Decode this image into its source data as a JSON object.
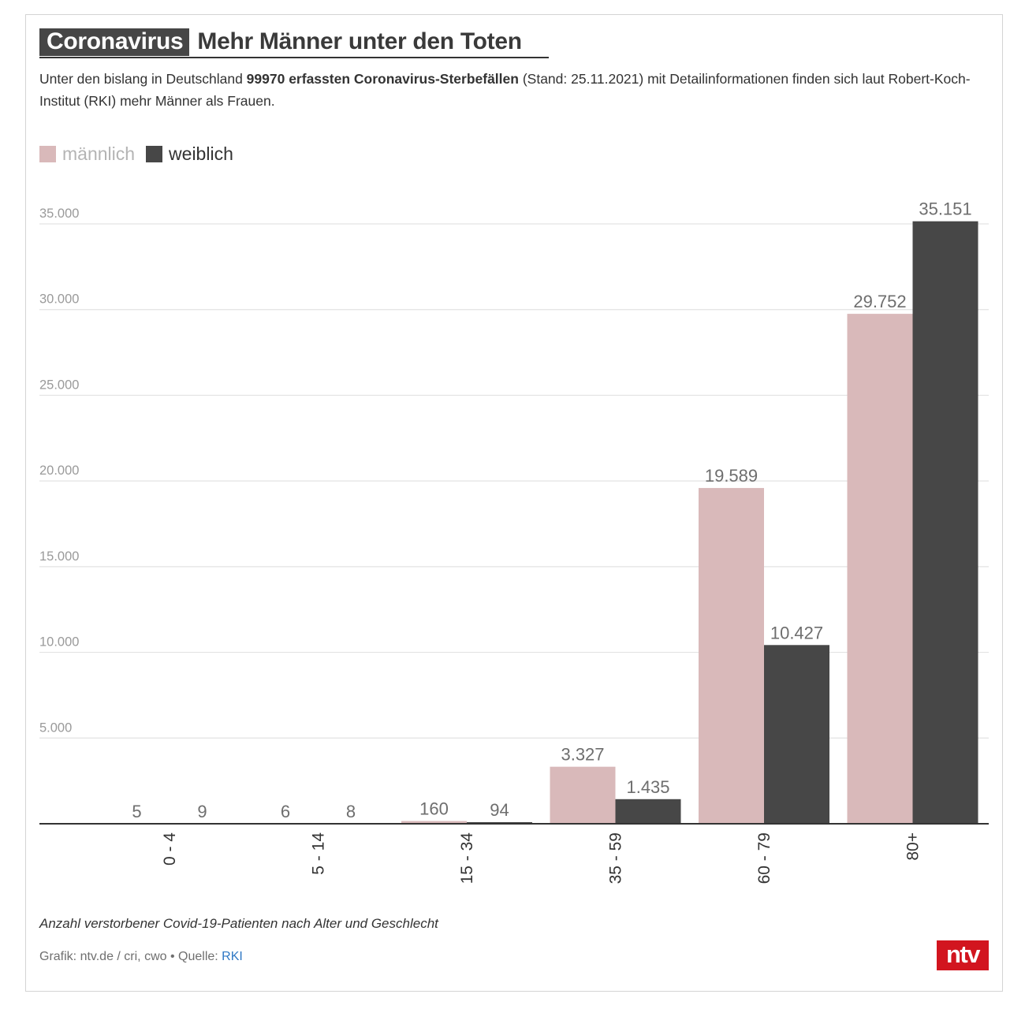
{
  "header": {
    "kicker": "Coronavirus",
    "title": "Mehr Männer unter den Toten"
  },
  "intro": {
    "text_before": "Unter den bislang in Deutschland ",
    "bold_text": "99970 erfassten Coronavirus-Sterbefällen",
    "text_after": " (Stand: 25.11.2021) mit Detailinformationen finden sich laut Robert-Koch-Institut (RKI) mehr Männer als Frauen."
  },
  "caption": "Anzahl verstorbener Covid-19-Patienten nach Alter und Geschlecht",
  "credit": {
    "text": "Grafik: ntv.de / cri, cwo • Quelle: ",
    "source_link": "RKI"
  },
  "logo": {
    "text": "ntv",
    "color": "#d2151f"
  },
  "chart_data": {
    "type": "bar",
    "categories": [
      "0 - 4",
      "5 - 14",
      "15 - 34",
      "35 - 59",
      "60 - 79",
      "80+"
    ],
    "series": [
      {
        "name": "männlich",
        "color": "#d9b9ba",
        "values": [
          5,
          6,
          160,
          3327,
          19589,
          29752
        ],
        "labels": [
          "5",
          "6",
          "160",
          "3.327",
          "19.589",
          "29.752"
        ]
      },
      {
        "name": "weiblich",
        "color": "#474747",
        "values": [
          9,
          8,
          94,
          1435,
          10427,
          35151
        ],
        "labels": [
          "9",
          "8",
          "94",
          "1.435",
          "10.427",
          "35.151"
        ]
      }
    ],
    "ylim": [
      0,
      35000
    ],
    "yticks": [
      5000,
      10000,
      15000,
      20000,
      25000,
      30000,
      35000
    ],
    "ytick_labels": [
      "5.000",
      "10.000",
      "15.000",
      "20.000",
      "25.000",
      "30.000",
      "35.000"
    ],
    "grid": true,
    "legend_position": "top-left",
    "xlabel": "",
    "ylabel": ""
  }
}
